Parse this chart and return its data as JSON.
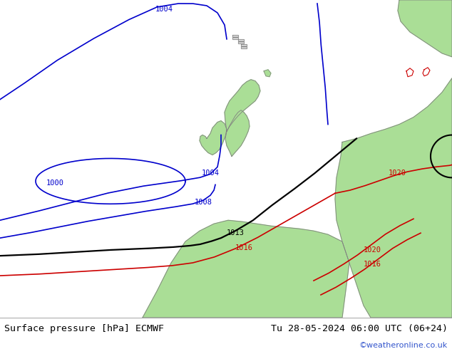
{
  "title_left": "Surface pressure [hPa] ECMWF",
  "title_right": "Tu 28-05-2024 06:00 UTC (06+24)",
  "credit": "©weatheronline.co.uk",
  "bg_color": "#d8d8d8",
  "land_color": "#aade96",
  "border_color": "#808080",
  "sea_color": "#d8d8d8",
  "bottom_bg": "#ffffff",
  "col_blue": "#0000cc",
  "col_black": "#000000",
  "col_red": "#cc0000",
  "col_link": "#3355cc"
}
